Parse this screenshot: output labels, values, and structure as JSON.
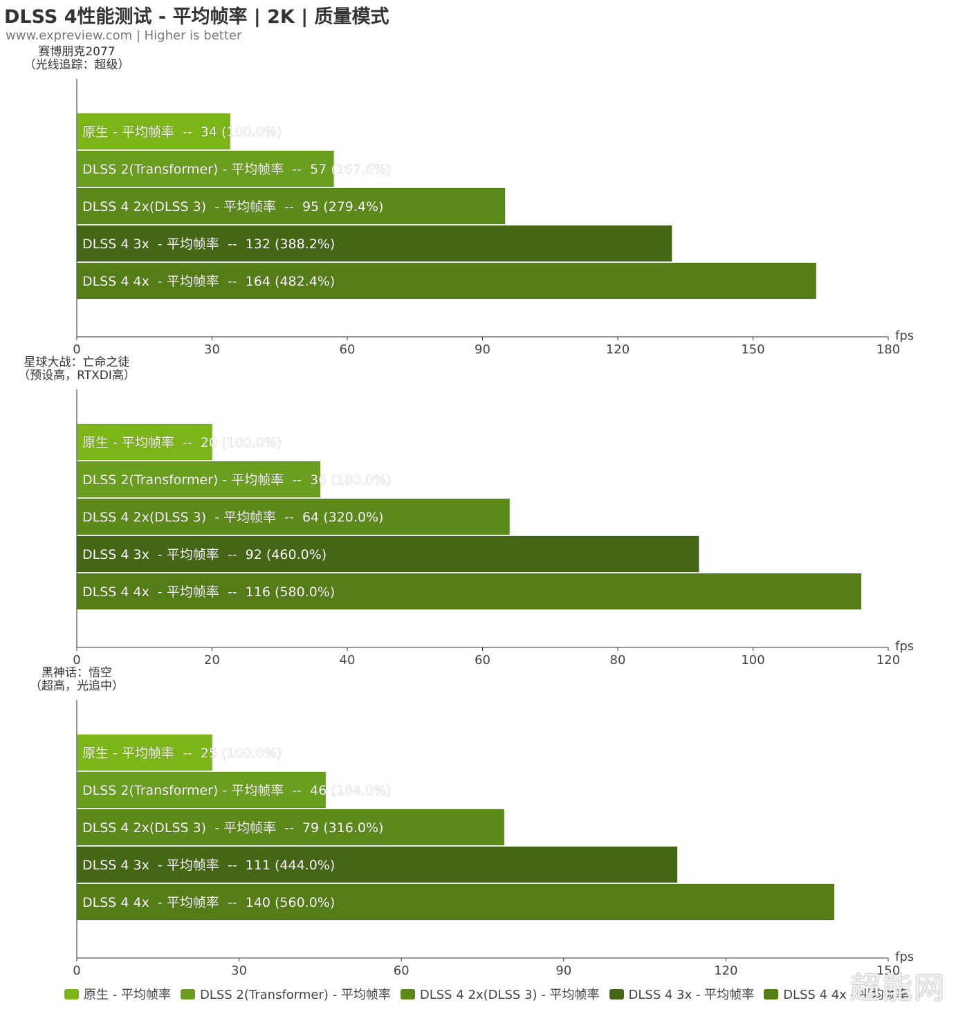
{
  "header": {
    "title": "DLSS 4性能测试 - 平均帧率 | 2K | 质量模式",
    "subtitle": "www.expreview.com | Higher is better"
  },
  "watermark": "超能网",
  "axis_unit": "fps",
  "legend": [
    {
      "label": "原生 - 平均帧率",
      "color": "#7CB518"
    },
    {
      "label": "DLSS 2(Transformer) - 平均帧率",
      "color": "#6A9E1F"
    },
    {
      "label": "DLSS 4 2x(DLSS 3)  - 平均帧率",
      "color": "#5C8A1A"
    },
    {
      "label": "DLSS 4 3x  - 平均帧率",
      "color": "#456614"
    },
    {
      "label": "DLSS 4 4x  - 平均帧率",
      "color": "#557D17"
    }
  ],
  "chart_data": [
    {
      "type": "bar",
      "orientation": "horizontal",
      "title_lines": [
        "赛博朋克2077",
        "（光线追踪：超级）"
      ],
      "xlabel": "fps",
      "xlim": [
        0,
        180
      ],
      "xticks": [
        0,
        30,
        60,
        90,
        120,
        150,
        180
      ],
      "bars": [
        {
          "label": "原生 - 平均帧率  --  34 (100.0%)",
          "value": 34
        },
        {
          "label": "DLSS 2(Transformer) - 平均帧率  --  57 (167.6%)",
          "value": 57
        },
        {
          "label": "DLSS 4 2x(DLSS 3)  - 平均帧率  --  95 (279.4%)",
          "value": 95
        },
        {
          "label": "DLSS 4 3x  - 平均帧率  --  132 (388.2%)",
          "value": 132
        },
        {
          "label": "DLSS 4 4x  - 平均帧率  --  164 (482.4%)",
          "value": 164
        }
      ]
    },
    {
      "type": "bar",
      "orientation": "horizontal",
      "title_lines": [
        "星球大战：亡命之徒",
        "（预设高，RTXDI高）"
      ],
      "xlabel": "fps",
      "xlim": [
        0,
        120
      ],
      "xticks": [
        0,
        20,
        40,
        60,
        80,
        100,
        120
      ],
      "bars": [
        {
          "label": "原生 - 平均帧率  --  20 (100.0%)",
          "value": 20
        },
        {
          "label": "DLSS 2(Transformer) - 平均帧率  --  36 (180.0%)",
          "value": 36
        },
        {
          "label": "DLSS 4 2x(DLSS 3)  - 平均帧率  --  64 (320.0%)",
          "value": 64
        },
        {
          "label": "DLSS 4 3x  - 平均帧率  --  92 (460.0%)",
          "value": 92
        },
        {
          "label": "DLSS 4 4x  - 平均帧率  --  116 (580.0%)",
          "value": 116
        }
      ]
    },
    {
      "type": "bar",
      "orientation": "horizontal",
      "title_lines": [
        "黑神话：悟空",
        "（超高，光追中）"
      ],
      "xlabel": "fps",
      "xlim": [
        0,
        150
      ],
      "xticks": [
        0,
        30,
        60,
        90,
        120,
        150
      ],
      "bars": [
        {
          "label": "原生 - 平均帧率  --  25 (100.0%)",
          "value": 25
        },
        {
          "label": "DLSS 2(Transformer) - 平均帧率  --  46 (184.0%)",
          "value": 46
        },
        {
          "label": "DLSS 4 2x(DLSS 3)  - 平均帧率  --  79 (316.0%)",
          "value": 79
        },
        {
          "label": "DLSS 4 3x  - 平均帧率  --  111 (444.0%)",
          "value": 111
        },
        {
          "label": "DLSS 4 4x  - 平均帧率  --  140 (560.0%)",
          "value": 140
        }
      ]
    }
  ]
}
